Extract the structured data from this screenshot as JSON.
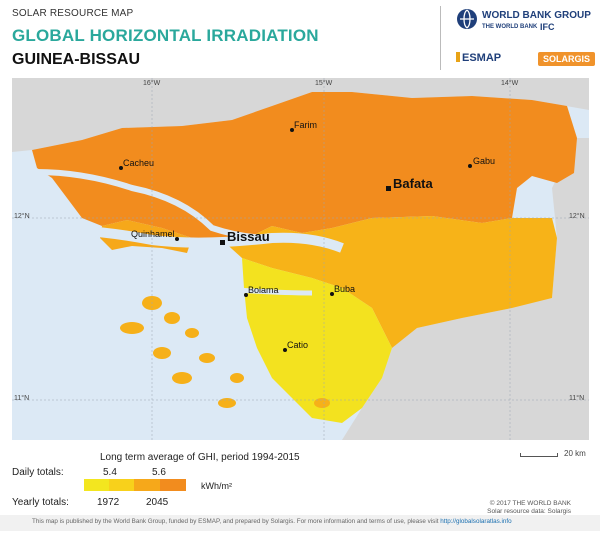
{
  "header": {
    "subtitle": "SOLAR RESOURCE MAP",
    "title": "GLOBAL HORIZONTAL IRRADIATION",
    "country": "GUINEA-BISSAU"
  },
  "logos": {
    "wbg_name": "WORLD BANK GROUP",
    "wbg_sub": "THE WORLD BANK",
    "ifc": "IFC",
    "esmap": "ESMAP",
    "solargis": "SOLARGIS"
  },
  "map": {
    "longitude_ticks": [
      "16°W",
      "15°W",
      "14°W"
    ],
    "latitude_ticks": [
      "12°N",
      "11°N"
    ],
    "cities": [
      {
        "name": "Farim",
        "size": "small"
      },
      {
        "name": "Cacheu",
        "size": "small"
      },
      {
        "name": "Gabu",
        "size": "small"
      },
      {
        "name": "Bafata",
        "size": "large"
      },
      {
        "name": "Quinhamel",
        "size": "small"
      },
      {
        "name": "Bissau",
        "size": "large"
      },
      {
        "name": "Bolama",
        "size": "small"
      },
      {
        "name": "Buba",
        "size": "small"
      },
      {
        "name": "Catio",
        "size": "small"
      }
    ],
    "credit_line1": "© 2017 THE WORLD BANK",
    "credit_line2": "Solar resource data: Solargis",
    "scale_label": "20 km",
    "colors": {
      "sea": "#dce9f5",
      "high": "#f28c1e",
      "mid": "#f7b318",
      "low": "#f3e21f",
      "neighbor": "#d7d7d7",
      "river": "#dce9f5"
    }
  },
  "legend": {
    "title": "Long term average of GHI, period 1994-2015",
    "daily_label": "Daily totals:",
    "yearly_label": "Yearly totals:",
    "daily_values": [
      "5.4",
      "5.6"
    ],
    "yearly_values": [
      "1972",
      "2045"
    ],
    "unit": "kWh/m²",
    "colors": [
      "#f3e61f",
      "#f8d11b",
      "#f6a81a",
      "#f28c1e"
    ]
  },
  "footer": {
    "text": "This map is published by the World Bank Group, funded by ESMAP, and prepared by Solargis. For more information and terms of use, please visit",
    "link": "http://globalsolaratlas.info"
  }
}
